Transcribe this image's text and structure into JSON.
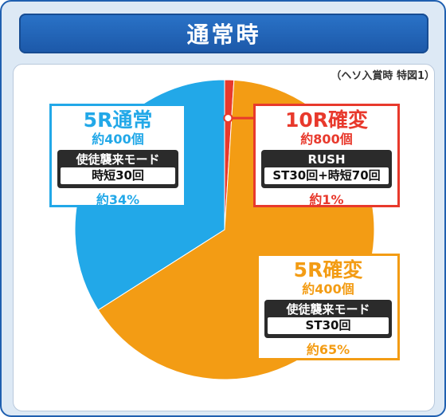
{
  "header": {
    "title": "通常時"
  },
  "note": "（ヘソ入賞時 特図1）",
  "colors": {
    "normal": "#22a8e8",
    "rush10": "#e8392c",
    "kakuhen5": "#f39c14",
    "frame": "#1f5fb0"
  },
  "chart_data": {
    "type": "pie",
    "title": "通常時",
    "slices": [
      {
        "name": "10R確変",
        "value": 1,
        "color": "#e8392c"
      },
      {
        "name": "5R確変",
        "value": 65,
        "color": "#f39c14"
      },
      {
        "name": "5R通常",
        "value": 34,
        "color": "#22a8e8"
      }
    ],
    "labels": [
      {
        "name": "5R通常",
        "count": "約400個",
        "mode": "使徒襲来モード",
        "detail": "時短30回",
        "percent": "約34%"
      },
      {
        "name": "10R確変",
        "count": "約800個",
        "mode": "RUSH",
        "detail": "ST30回+時短70回",
        "percent": "約1%"
      },
      {
        "name": "5R確変",
        "count": "約400個",
        "mode": "使徒襲来モード",
        "detail": "ST30回",
        "percent": "約65%"
      }
    ]
  }
}
